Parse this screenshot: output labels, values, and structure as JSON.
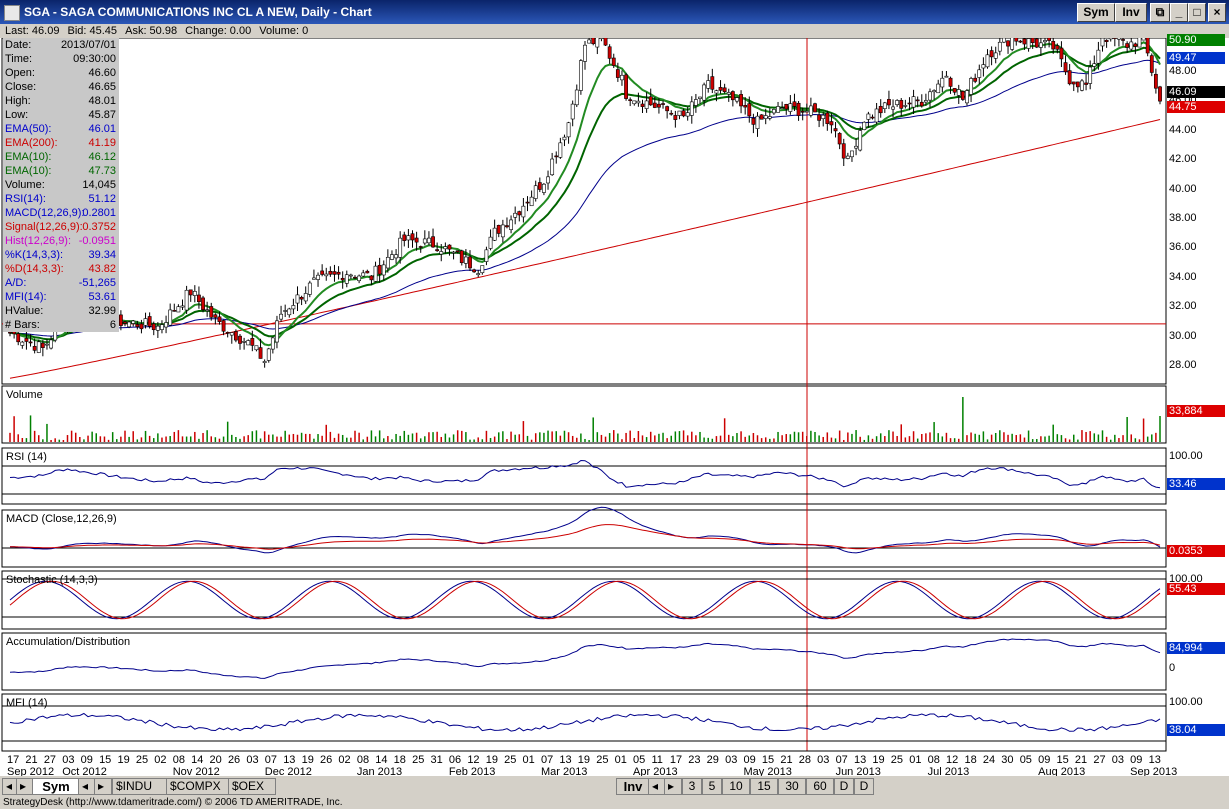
{
  "window": {
    "title": "SGA - SAGA COMMUNICATIONS INC CL A NEW, Daily - Chart",
    "sym_btn": "Sym",
    "inv_btn": "Inv",
    "min": "_",
    "max": "□",
    "close": "×"
  },
  "quote": {
    "last": "Last: 46.09",
    "bid": "Bid: 45.45",
    "ask": "Ask: 50.98",
    "change": "Change: 0.00",
    "volume": "Volume: 0"
  },
  "info": [
    {
      "label": "Date:",
      "value": "2013/07/01",
      "color": "#000000"
    },
    {
      "label": "Time:",
      "value": "09:30:00",
      "color": "#000000"
    },
    {
      "label": "Open:",
      "value": "46.60",
      "color": "#000000"
    },
    {
      "label": "Close:",
      "value": "46.65",
      "color": "#000000"
    },
    {
      "label": "High:",
      "value": "48.01",
      "color": "#000000"
    },
    {
      "label": "Low:",
      "value": "45.87",
      "color": "#000000"
    },
    {
      "label": "EMA(50):",
      "value": "46.01",
      "color": "#0000cc"
    },
    {
      "label": "EMA(200):",
      "value": "41.19",
      "color": "#cc0000"
    },
    {
      "label": "EMA(10):",
      "value": "46.12",
      "color": "#006600"
    },
    {
      "label": "EMA(10):",
      "value": "47.73",
      "color": "#006600"
    },
    {
      "label": "Volume:",
      "value": "14,045",
      "color": "#000000"
    },
    {
      "label": "RSI(14):",
      "value": "51.12",
      "color": "#0000cc"
    },
    {
      "label": "MACD(12,26,9):",
      "value": "0.2801",
      "color": "#0000cc"
    },
    {
      "label": "Signal(12,26,9):",
      "value": "0.3752",
      "color": "#cc0000"
    },
    {
      "label": "Hist(12,26,9):",
      "value": "-0.0951",
      "color": "#cc00cc"
    },
    {
      "label": "%K(14,3,3):",
      "value": "39.34",
      "color": "#0000cc"
    },
    {
      "label": "%D(14,3,3):",
      "value": "43.82",
      "color": "#cc0000"
    },
    {
      "label": "A/D:",
      "value": "-51,265",
      "color": "#0000cc"
    },
    {
      "label": "MFI(14):",
      "value": "53.61",
      "color": "#0000cc"
    },
    {
      "label": "HValue:",
      "value": "32.99",
      "color": "#000000"
    },
    {
      "label": "# Bars:",
      "value": "6",
      "color": "#000000"
    }
  ],
  "price_axis": [
    "48.00",
    "46.00",
    "44.00",
    "42.00",
    "40.00",
    "38.00",
    "36.00",
    "34.00",
    "32.00",
    "30.00",
    "28.00"
  ],
  "price_badges": [
    {
      "text": "50.90",
      "bg": "#008000",
      "fg": "#ffffff"
    },
    {
      "text": "49.47",
      "bg": "#0033cc",
      "fg": "#ffffff"
    },
    {
      "text": "46.09",
      "bg": "#000000",
      "fg": "#ffffff"
    },
    {
      "text": "44.75",
      "bg": "#dd0000",
      "fg": "#ffffff"
    }
  ],
  "panels": {
    "volume": {
      "title": "Volume",
      "badge": "33,884",
      "badge_bg": "#dd0000"
    },
    "rsi": {
      "title": "RSI (14)",
      "top": "100.00",
      "badge": "33.46",
      "badge_bg": "#0033cc"
    },
    "macd": {
      "title": "MACD (Close,12,26,9)",
      "badge": "0.0353",
      "badge_bg": "#dd0000"
    },
    "stoch": {
      "title": "Stochastic (14,3,3)",
      "top": "100.00",
      "badge": "55.43",
      "badge_bg": "#dd0000"
    },
    "ad": {
      "title": "Accumulation/Distribution",
      "badge": "84,994",
      "badge_bg": "#0033cc",
      "zero": "0"
    },
    "mfi": {
      "title": "MFI (14)",
      "top": "100.00",
      "badge": "38.04",
      "badge_bg": "#0033cc"
    }
  },
  "x_days": [
    "17",
    "21",
    "27",
    "03",
    "09",
    "15",
    "19",
    "25",
    "02",
    "08",
    "14",
    "20",
    "26",
    "03",
    "07",
    "13",
    "19",
    "26",
    "02",
    "08",
    "14",
    "18",
    "25",
    "31",
    "06",
    "12",
    "19",
    "25",
    "01",
    "07",
    "13",
    "19",
    "25",
    "01",
    "05",
    "11",
    "17",
    "23",
    "29",
    "03",
    "09",
    "15",
    "21",
    "28",
    "03",
    "07",
    "13",
    "19",
    "25",
    "01",
    "08",
    "12",
    "18",
    "24",
    "30",
    "05",
    "09",
    "15",
    "21",
    "27",
    "03",
    "09",
    "13"
  ],
  "x_months": [
    {
      "label": "Sep 2012",
      "col": 0
    },
    {
      "label": "Oct 2012",
      "col": 3
    },
    {
      "label": "Nov 2012",
      "col": 9
    },
    {
      "label": "Dec 2012",
      "col": 14
    },
    {
      "label": "Jan 2013",
      "col": 19
    },
    {
      "label": "Feb 2013",
      "col": 24
    },
    {
      "label": "Mar 2013",
      "col": 29
    },
    {
      "label": "Apr 2013",
      "col": 34
    },
    {
      "label": "May 2013",
      "col": 40
    },
    {
      "label": "Jun 2013",
      "col": 45
    },
    {
      "label": "Jul 2013",
      "col": 50
    },
    {
      "label": "Aug 2013",
      "col": 56
    },
    {
      "label": "Sep 2013",
      "col": 61
    }
  ],
  "tabs": {
    "left": [
      {
        "label": "Sym"
      },
      {
        "label": "$INDU"
      },
      {
        "label": "$COMPX"
      },
      {
        "label": "$OEX"
      }
    ],
    "inv": "Inv",
    "periods": [
      "3",
      "5",
      "10",
      "15",
      "30",
      "60",
      "D",
      "D"
    ]
  },
  "status": "StrategyDesk (http://www.tdameritrade.com/) © 2006 TD AMERITRADE, Inc."
}
